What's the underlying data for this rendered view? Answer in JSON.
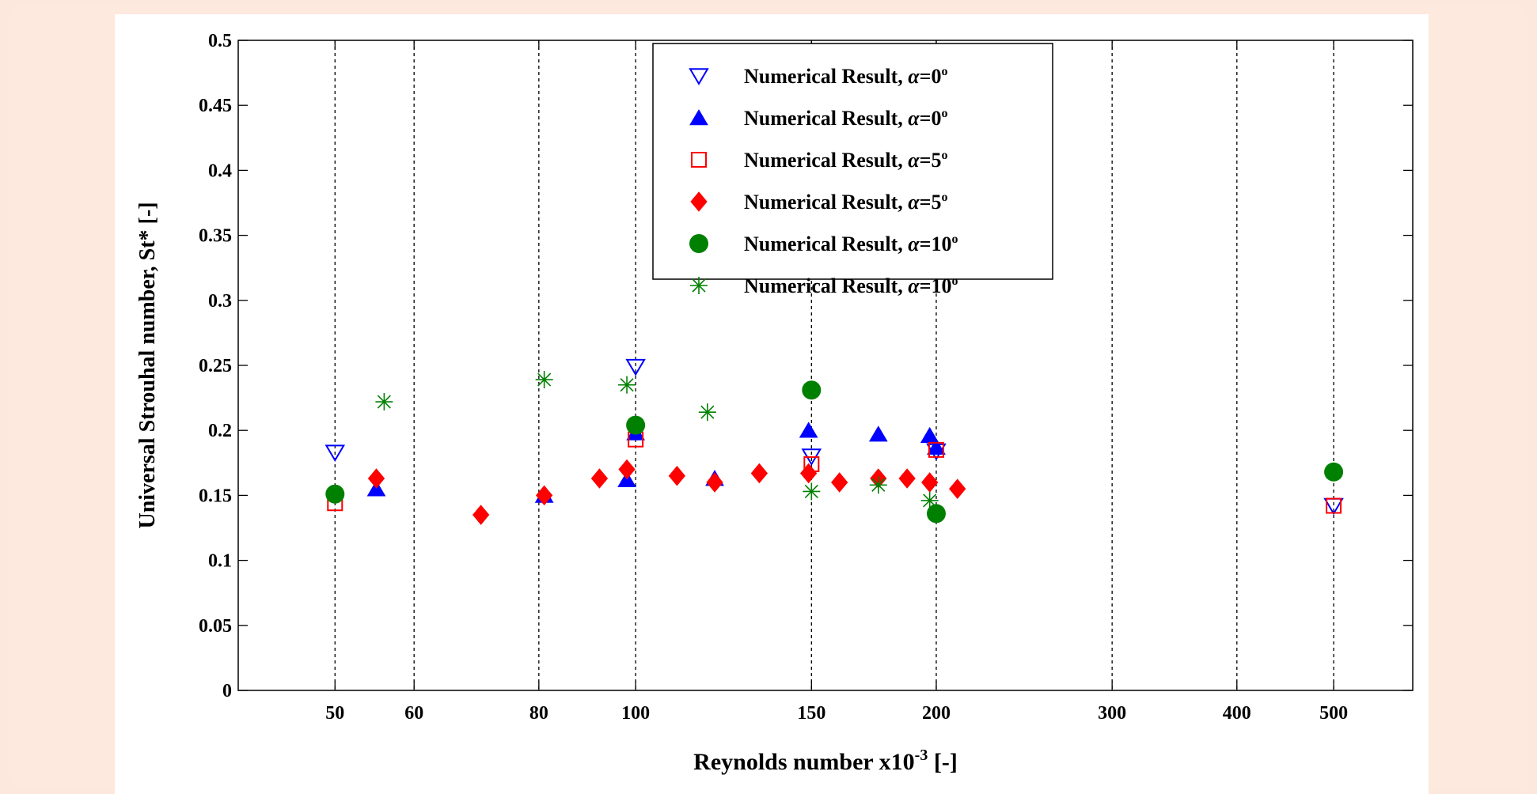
{
  "chart_data": {
    "type": "scatter",
    "title": "",
    "xlabel": "Reynolds number x10",
    "xlabel_sup": "-3",
    "xlabel_unit": " [-]",
    "ylabel": "Universal Strouhal number, St* [-]",
    "x_scale": "log",
    "xlim": [
      40,
      600
    ],
    "ylim": [
      0,
      0.5
    ],
    "x_ticks": [
      50,
      60,
      80,
      100,
      150,
      200,
      300,
      400,
      500
    ],
    "x_tick_labels": [
      "50",
      "60",
      "80",
      "100",
      "150",
      "200",
      "300",
      "400",
      "500"
    ],
    "y_ticks": [
      0,
      0.05,
      0.1,
      0.15,
      0.2,
      0.25,
      0.3,
      0.35,
      0.4,
      0.45,
      0.5
    ],
    "y_tick_labels": [
      "0",
      "0.05",
      "0.1",
      "0.15",
      "0.2",
      "0.25",
      "0.3",
      "0.35",
      "0.4",
      "0.45",
      "0.5"
    ],
    "grid": "vertical dashed",
    "legend_position": "top-center",
    "series": [
      {
        "name": "Numerical Result, α=0°",
        "marker": "triangle-down-open",
        "color": "#0000ff",
        "x": [
          50,
          100,
          150,
          200,
          500
        ],
        "y": [
          0.183,
          0.249,
          0.18,
          0.184,
          0.142
        ]
      },
      {
        "name": "Numerical Result, α=0°",
        "marker": "triangle-up-filled",
        "color": "#0000ff",
        "x": [
          55,
          81,
          98,
          100,
          120,
          149,
          175,
          197,
          200
        ],
        "y": [
          0.155,
          0.15,
          0.162,
          0.198,
          0.163,
          0.2,
          0.197,
          0.196,
          0.187
        ]
      },
      {
        "name": "Numerical Result, α=5°",
        "marker": "square-open",
        "color": "#ff0000",
        "x": [
          50,
          100,
          150,
          200,
          500
        ],
        "y": [
          0.144,
          0.193,
          0.174,
          0.185,
          0.142
        ]
      },
      {
        "name": "Numerical Result, α=5°",
        "marker": "diamond-filled",
        "color": "#ff0000",
        "x": [
          55,
          70,
          81,
          92,
          98,
          110,
          120,
          133,
          149,
          160,
          175,
          187,
          197,
          210
        ],
        "y": [
          0.163,
          0.135,
          0.15,
          0.163,
          0.17,
          0.165,
          0.16,
          0.167,
          0.167,
          0.16,
          0.163,
          0.163,
          0.16,
          0.155
        ]
      },
      {
        "name": "Numerical Result, α=10°",
        "marker": "circle-filled",
        "color": "#008000",
        "x": [
          50,
          100,
          150,
          200,
          500
        ],
        "y": [
          0.151,
          0.204,
          0.231,
          0.136,
          0.168
        ]
      },
      {
        "name": "Numerical Result, α=10°",
        "marker": "asterisk",
        "color": "#008000",
        "x": [
          56,
          81,
          98,
          118,
          150,
          175,
          197
        ],
        "y": [
          0.222,
          0.239,
          0.235,
          0.214,
          0.153,
          0.158,
          0.146
        ]
      }
    ]
  },
  "legend": {
    "entries": [
      {
        "prefix": "Numerical Result, ",
        "alpha": "α",
        "value": "=0",
        "deg": "o"
      },
      {
        "prefix": "Numerical Result, ",
        "alpha": "α",
        "value": "=0",
        "deg": "o"
      },
      {
        "prefix": "Numerical Result, ",
        "alpha": "α",
        "value": "=5",
        "deg": "o"
      },
      {
        "prefix": "Numerical Result, ",
        "alpha": "α",
        "value": "=5",
        "deg": "o"
      },
      {
        "prefix": "Numerical Result, ",
        "alpha": "α",
        "value": "=10",
        "deg": "o"
      },
      {
        "prefix": "Numerical Result, ",
        "alpha": "α",
        "value": "=10",
        "deg": "o"
      }
    ]
  }
}
